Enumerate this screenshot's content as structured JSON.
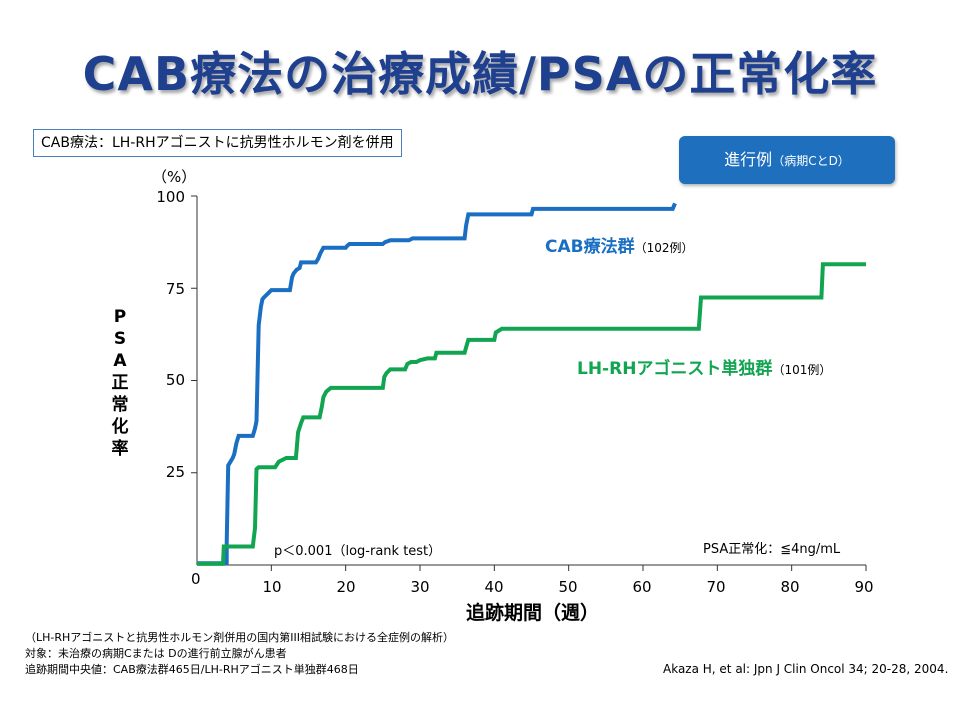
{
  "title": "CAB療法の治療成績/PSAの正常化率",
  "definition_box": "CAB療法：LH-RHアゴニストに抗男性ホルモン剤を併用",
  "stage_button": {
    "main": "進行例",
    "sub": "（病期CとD）"
  },
  "ylabel": "PSA正常化率",
  "y_unit": "（%）",
  "xlabel": "追跡期間（週）",
  "origin_label": "0",
  "pvalue": "p＜0.001（log-rank test）",
  "normalization_criterion": "PSA正常化：≦4ng/mL",
  "notes": [
    "（LH-RHアゴニストと抗男性ホルモン剤併用の国内第III相試験における全症例の解析）",
    "対象：未治療の病期Cまたは Dの進行前立腺がん患者",
    "追跡期間中央値：CAB療法群465日/LH-RHアゴニスト単独群468日"
  ],
  "citation": "Akaza H, et al: Jpn J Clin Oncol 34; 20-28, 2004.",
  "colors": {
    "cab": "#1a6fc2",
    "lhrh": "#12a551",
    "title": "#1f3f8f",
    "button": "#1f6fbf"
  },
  "chart_data": {
    "type": "line",
    "step": true,
    "xlim": [
      0,
      90
    ],
    "ylim": [
      0,
      100
    ],
    "xticks": [
      10,
      20,
      30,
      40,
      50,
      60,
      70,
      80,
      90
    ],
    "yticks": [
      25,
      50,
      75,
      100
    ],
    "series": [
      {
        "name": "CAB療法群",
        "n_label": "（102例）",
        "color": "#1a6fc2",
        "points": [
          [
            0,
            0.5
          ],
          [
            4,
            0.5
          ],
          [
            4,
            6
          ],
          [
            4.2,
            27
          ],
          [
            4.8,
            29
          ],
          [
            5,
            30
          ],
          [
            5.3,
            33
          ],
          [
            5.6,
            35
          ],
          [
            7.5,
            35
          ],
          [
            7.8,
            37
          ],
          [
            8,
            39
          ],
          [
            8.3,
            65
          ],
          [
            8.6,
            70
          ],
          [
            8.8,
            72
          ],
          [
            9,
            72.5
          ],
          [
            9.5,
            73.5
          ],
          [
            10,
            74.5
          ],
          [
            12.5,
            74.5
          ],
          [
            12.8,
            78
          ],
          [
            13,
            79
          ],
          [
            13.4,
            80
          ],
          [
            13.8,
            80.5
          ],
          [
            14,
            82
          ],
          [
            16,
            82
          ],
          [
            16.3,
            83
          ],
          [
            16.6,
            84.5
          ],
          [
            17,
            86
          ],
          [
            20,
            86
          ],
          [
            20.2,
            86.5
          ],
          [
            20.5,
            87
          ],
          [
            24,
            87
          ],
          [
            25,
            87
          ],
          [
            25.3,
            87.5
          ],
          [
            26,
            88
          ],
          [
            28,
            88
          ],
          [
            28.5,
            88
          ],
          [
            29,
            88.5
          ],
          [
            33,
            88.5
          ],
          [
            36,
            88.5
          ],
          [
            36.2,
            92
          ],
          [
            36.5,
            95
          ],
          [
            45,
            95
          ],
          [
            45.2,
            96.5
          ],
          [
            55,
            96.5
          ],
          [
            64,
            96.5
          ],
          [
            64.3,
            98
          ]
        ]
      },
      {
        "name": "LH-RHアゴニスト単独群",
        "n_label": "（101例）",
        "color": "#12a551",
        "points": [
          [
            0,
            0.3
          ],
          [
            3.5,
            0.3
          ],
          [
            3.6,
            5
          ],
          [
            7.5,
            5
          ],
          [
            7.8,
            10
          ],
          [
            8,
            26
          ],
          [
            8.3,
            26.5
          ],
          [
            10.5,
            26.5
          ],
          [
            11,
            28
          ],
          [
            12,
            29
          ],
          [
            13.3,
            29
          ],
          [
            13.6,
            36
          ],
          [
            14,
            38.5
          ],
          [
            14.3,
            40
          ],
          [
            16.5,
            40
          ],
          [
            16.8,
            43
          ],
          [
            17,
            45.5
          ],
          [
            17.4,
            47
          ],
          [
            18,
            48
          ],
          [
            25,
            48
          ],
          [
            25.2,
            51
          ],
          [
            25.5,
            52
          ],
          [
            26,
            53
          ],
          [
            28,
            53
          ],
          [
            28.3,
            54.5
          ],
          [
            28.8,
            55
          ],
          [
            29.5,
            55
          ],
          [
            30,
            55.5
          ],
          [
            31,
            56
          ],
          [
            32,
            56
          ],
          [
            32.2,
            57.5
          ],
          [
            36,
            57.5
          ],
          [
            36.2,
            59
          ],
          [
            36.5,
            61
          ],
          [
            40,
            61
          ],
          [
            40.2,
            63
          ],
          [
            41,
            64
          ],
          [
            55,
            64
          ],
          [
            67.5,
            64
          ],
          [
            67.8,
            72.5
          ],
          [
            84,
            72.5
          ],
          [
            84.2,
            81.5
          ],
          [
            90,
            81.5
          ]
        ]
      }
    ]
  }
}
